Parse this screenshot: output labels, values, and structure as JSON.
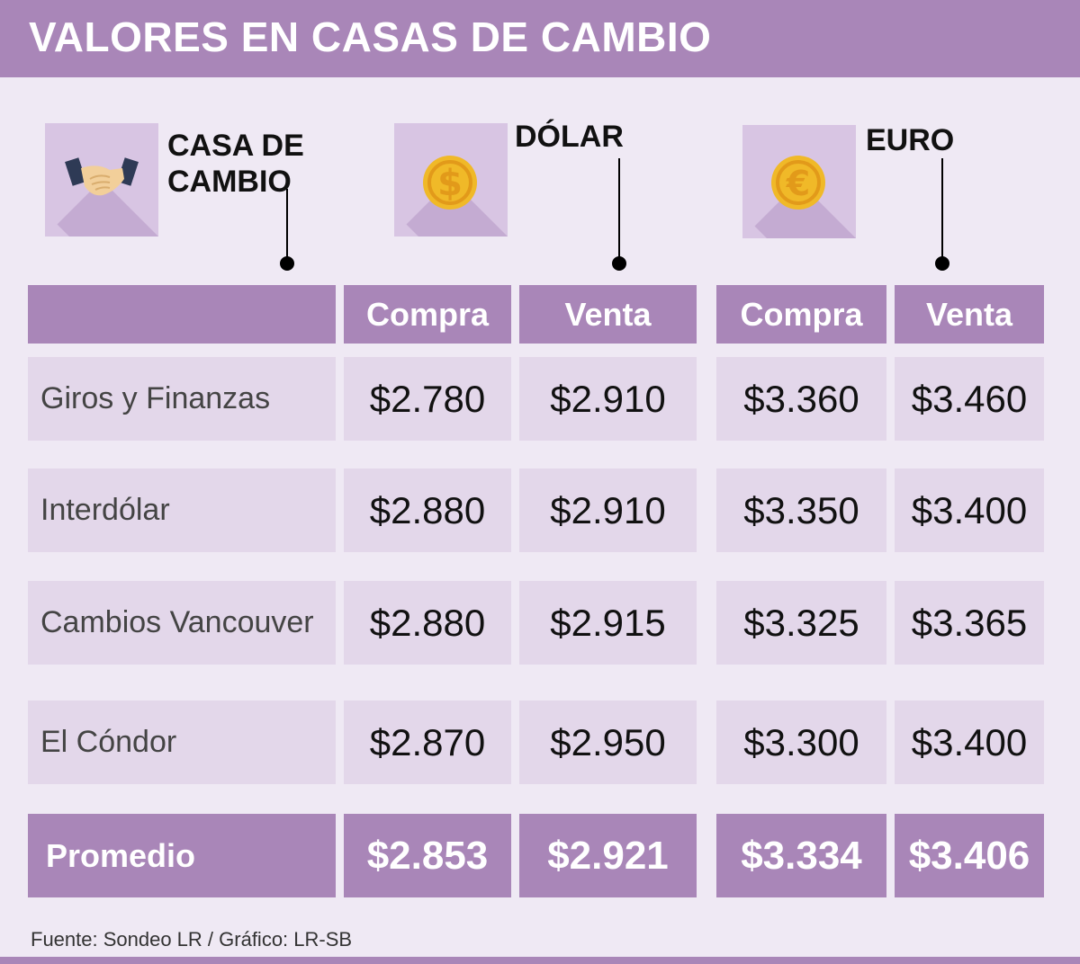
{
  "title": "VALORES EN CASAS DE CAMBIO",
  "icons": {
    "casa": {
      "label_line1": "CASA DE",
      "label_line2": "CAMBIO",
      "icon": "handshake-icon"
    },
    "dolar": {
      "label": "DÓLAR",
      "icon": "dollar-coin-icon",
      "glyph": "$"
    },
    "euro": {
      "label": "EURO",
      "icon": "euro-coin-icon",
      "glyph": "€"
    }
  },
  "headers": {
    "dolar_compra": "Compra",
    "dolar_venta": "Venta",
    "euro_compra": "Compra",
    "euro_venta": "Venta"
  },
  "rows": [
    {
      "name": "Giros y Finanzas",
      "dolar_compra": "$2.780",
      "dolar_venta": "$2.910",
      "euro_compra": "$3.360",
      "euro_venta": "$3.460"
    },
    {
      "name": "Interdólar",
      "dolar_compra": "$2.880",
      "dolar_venta": "$2.910",
      "euro_compra": "$3.350",
      "euro_venta": "$3.400"
    },
    {
      "name": "Cambios Vancouver",
      "dolar_compra": "$2.880",
      "dolar_venta": "$2.915",
      "euro_compra": "$3.325",
      "euro_venta": "$3.365"
    },
    {
      "name": "El Cóndor",
      "dolar_compra": "$2.870",
      "dolar_venta": "$2.950",
      "euro_compra": "$3.300",
      "euro_venta": "$3.400"
    }
  ],
  "average": {
    "name": "Promedio",
    "dolar_compra": "$2.853",
    "dolar_venta": "$2.921",
    "euro_compra": "$3.334",
    "euro_venta": "$3.406"
  },
  "source": "Fuente: Sondeo LR / Gráfico: LR-SB",
  "colors": {
    "accent": "#a986b8",
    "row_bg": "#e3d7ea",
    "page_bg": "#efe9f4",
    "coin": "#f0b928"
  },
  "chart_data": {
    "type": "table",
    "title": "VALORES EN CASAS DE CAMBIO",
    "columns": [
      "CASA DE CAMBIO",
      "DÓLAR Compra",
      "DÓLAR Venta",
      "EURO Compra",
      "EURO Venta"
    ],
    "rows": [
      [
        "Giros y Finanzas",
        2780,
        2910,
        3360,
        3460
      ],
      [
        "Interdólar",
        2880,
        2910,
        3350,
        3400
      ],
      [
        "Cambios Vancouver",
        2880,
        2915,
        3325,
        3365
      ],
      [
        "El Cóndor",
        2870,
        2950,
        3300,
        3400
      ],
      [
        "Promedio",
        2853,
        2921,
        3334,
        3406
      ]
    ]
  }
}
